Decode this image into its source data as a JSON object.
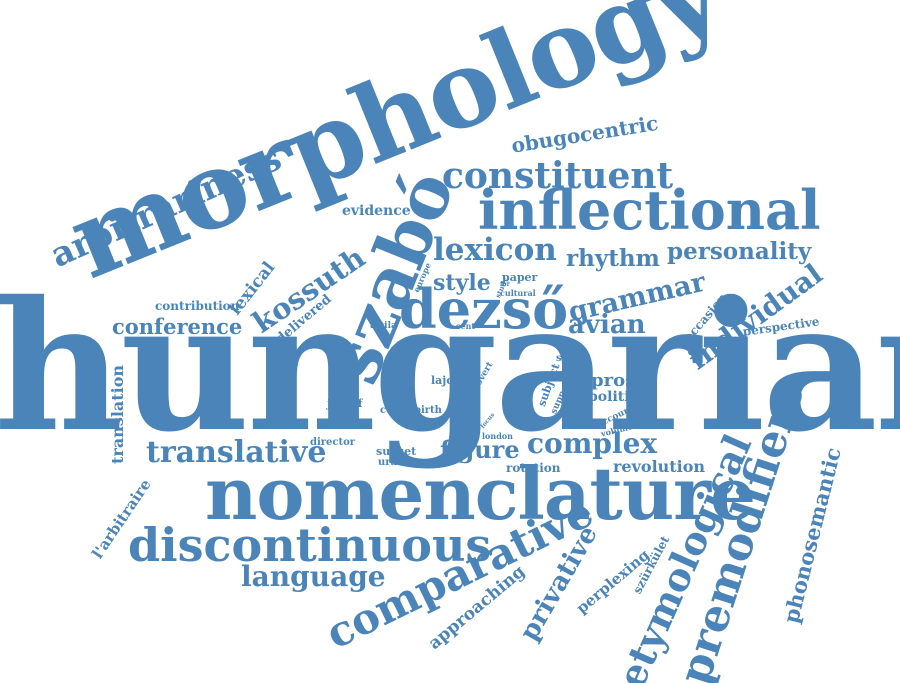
{
  "color": "#4a84b8",
  "words": {
    "hungarian": "hungarian",
    "morphology": "morphology",
    "nomenclature": "nomenclature",
    "szabo": "szabó",
    "inflectional": "inflectional",
    "dezso": "dezső",
    "discontinuous": "discontinuous",
    "comparative": "comparative",
    "premodifiers": "premodifiers",
    "etymological": "etymological",
    "constituent": "constituent",
    "arbitrariness": "arbitrariness",
    "lexicon": "lexicon",
    "individual": "individual",
    "translative": "translative",
    "kossuth": "kossuth",
    "complex": "complex",
    "language": "language",
    "privative": "privative",
    "grammar": "grammar",
    "personality": "personality",
    "rhythm": "rhythm",
    "phonosemantic": "phonosemantic",
    "obugocentric": "obugocentric",
    "conference": "conference",
    "avian": "avian",
    "style": "style",
    "figure": "figure",
    "lexical": "lexical",
    "translation": "translation",
    "approaching": "approaching",
    "perplexing": "perplexing",
    "prose": "prose",
    "political": "political",
    "revolution": "revolution",
    "evidence": "evidence",
    "contribution": "contribution",
    "delivered": "delivered",
    "larbitraire": "l'arbitraire",
    "szurkulet": "szürkület",
    "occasion": "occasion",
    "perspective": "perspective",
    "rotation": "rotation",
    "subset": "subset",
    "uralic": "uralic",
    "director": "director",
    "jozsef": "józsef",
    "lajos": "lajos",
    "word": "word",
    "centre": "centre",
    "birth": "birth",
    "vowel": "vowel",
    "covert": "covert",
    "signe": "signe",
    "subject": "subject",
    "support": "support",
    "account": "account",
    "volume": "volume",
    "london": "london",
    "paper": "paper",
    "cultural": "cultural",
    "europe": "europe",
    "study": "study",
    "attila": "attila",
    "sent": "sent",
    "focus": "focus",
    "for": "for"
  }
}
